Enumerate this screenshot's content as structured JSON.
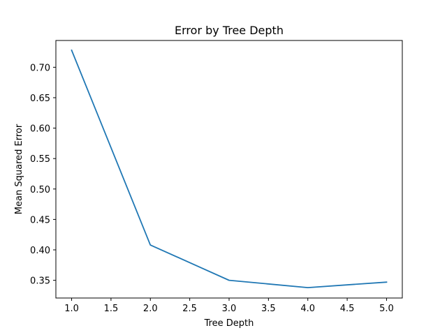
{
  "chart_data": {
    "type": "line",
    "title": "Error by Tree Depth",
    "xlabel": "Tree Depth",
    "ylabel": "Mean Squared Error",
    "xlim": [
      0.8,
      5.2
    ],
    "ylim": [
      0.3209,
      0.744
    ],
    "x_ticks": [
      1.0,
      1.5,
      2.0,
      2.5,
      3.0,
      3.5,
      4.0,
      4.5,
      5.0
    ],
    "x_tick_labels": [
      "1.0",
      "1.5",
      "2.0",
      "2.5",
      "3.0",
      "3.5",
      "4.0",
      "4.5",
      "5.0"
    ],
    "y_ticks": [
      0.35,
      0.4,
      0.45,
      0.5,
      0.55,
      0.6,
      0.65,
      0.7
    ],
    "y_tick_labels": [
      "0.35",
      "0.40",
      "0.45",
      "0.50",
      "0.55",
      "0.60",
      "0.65",
      "0.70"
    ],
    "grid": false,
    "series": [
      {
        "color": "#1f77b4",
        "x": [
          1,
          2,
          3,
          4,
          5
        ],
        "y": [
          0.728,
          0.408,
          0.35,
          0.338,
          0.347
        ]
      }
    ]
  }
}
